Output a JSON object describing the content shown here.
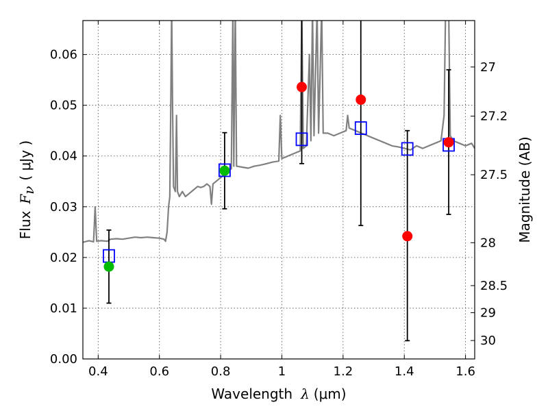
{
  "chart_data": {
    "type": "scatter",
    "xlabel_prefix": "Wavelength",
    "xlabel_symbol": "λ",
    "xlabel_unit": "(μm)",
    "ylabel_prefix": "Flux",
    "ylabel_symbol": "F",
    "ylabel_subscript": "ν",
    "ylabel_unit": "( μJy )",
    "y2label": "Magnitude (AB)",
    "xlim": [
      0.35,
      1.63
    ],
    "ylim": [
      0.0,
      0.0667
    ],
    "grid": true,
    "x_ticks": [
      0.4,
      0.6,
      0.8,
      1.0,
      1.2,
      1.4,
      1.6
    ],
    "x_tick_labels": [
      "0.4",
      "0.6",
      "0.8",
      "1",
      "1.2",
      "1.4",
      "1.6"
    ],
    "y_ticks": [
      0.0,
      0.01,
      0.02,
      0.03,
      0.04,
      0.05,
      0.06
    ],
    "y_tick_labels": [
      "0.00",
      "0.01",
      "0.02",
      "0.03",
      "0.04",
      "0.05",
      "0.06"
    ],
    "y2_ticks": [
      27,
      27.2,
      27.5,
      28,
      28.5,
      29,
      30
    ],
    "y2_tick_labels": [
      "27",
      "27.2",
      "27.5",
      "28",
      "28.5",
      "29",
      "30"
    ],
    "colors": {
      "spectrum": "#808080",
      "model_marker": "#0000ff",
      "green_points": "#00bb00",
      "red_points": "#ff0000",
      "errorbars": "#000000"
    },
    "series": [
      {
        "marker": "open-square",
        "color": "#0000ff",
        "points": [
          {
            "x": 0.435,
            "y": 0.0203
          },
          {
            "x": 0.813,
            "y": 0.0372
          },
          {
            "x": 1.065,
            "y": 0.0433
          },
          {
            "x": 1.258,
            "y": 0.0455
          },
          {
            "x": 1.41,
            "y": 0.0414
          },
          {
            "x": 1.545,
            "y": 0.0422
          }
        ]
      },
      {
        "marker": "filled-circle",
        "color": "#00bb00",
        "points": [
          {
            "x": 0.435,
            "y": 0.0182,
            "yerr_low": 0.011,
            "yerr_high": 0.0254
          },
          {
            "x": 0.813,
            "y": 0.0371,
            "yerr_low": 0.0296,
            "yerr_high": 0.0446
          }
        ]
      },
      {
        "marker": "filled-circle",
        "color": "#ff0000",
        "points": [
          {
            "x": 1.065,
            "y": 0.0536,
            "yerr_low": 0.0385,
            "yerr_high": 0.069
          },
          {
            "x": 1.258,
            "y": 0.0511,
            "yerr_low": 0.0263,
            "yerr_high": 0.069
          },
          {
            "x": 1.41,
            "y": 0.0242,
            "yerr_low": 0.0036,
            "yerr_high": 0.045
          },
          {
            "x": 1.545,
            "y": 0.0427,
            "yerr_low": 0.0285,
            "yerr_high": 0.057
          }
        ]
      }
    ],
    "spectrum": [
      [
        0.35,
        0.023
      ],
      [
        0.37,
        0.0233
      ],
      [
        0.385,
        0.0231
      ],
      [
        0.39,
        0.03
      ],
      [
        0.395,
        0.0232
      ],
      [
        0.41,
        0.0233
      ],
      [
        0.43,
        0.0232
      ],
      [
        0.44,
        0.0236
      ],
      [
        0.46,
        0.0237
      ],
      [
        0.48,
        0.0236
      ],
      [
        0.5,
        0.0238
      ],
      [
        0.52,
        0.024
      ],
      [
        0.54,
        0.0239
      ],
      [
        0.56,
        0.024
      ],
      [
        0.58,
        0.0239
      ],
      [
        0.6,
        0.0238
      ],
      [
        0.615,
        0.0236
      ],
      [
        0.62,
        0.0232
      ],
      [
        0.625,
        0.025
      ],
      [
        0.63,
        0.03
      ],
      [
        0.634,
        0.032
      ],
      [
        0.637,
        0.05
      ],
      [
        0.64,
        0.069
      ],
      [
        0.643,
        0.05
      ],
      [
        0.646,
        0.034
      ],
      [
        0.652,
        0.033
      ],
      [
        0.656,
        0.048
      ],
      [
        0.659,
        0.033
      ],
      [
        0.665,
        0.032
      ],
      [
        0.675,
        0.033
      ],
      [
        0.685,
        0.032
      ],
      [
        0.695,
        0.0325
      ],
      [
        0.705,
        0.033
      ],
      [
        0.715,
        0.0335
      ],
      [
        0.725,
        0.034
      ],
      [
        0.735,
        0.0338
      ],
      [
        0.745,
        0.034
      ],
      [
        0.755,
        0.0345
      ],
      [
        0.765,
        0.034
      ],
      [
        0.77,
        0.0305
      ],
      [
        0.775,
        0.0345
      ],
      [
        0.785,
        0.035
      ],
      [
        0.795,
        0.0355
      ],
      [
        0.805,
        0.036
      ],
      [
        0.815,
        0.0365
      ],
      [
        0.825,
        0.037
      ],
      [
        0.835,
        0.0375
      ],
      [
        0.84,
        0.069
      ],
      [
        0.843,
        0.038
      ],
      [
        0.848,
        0.069
      ],
      [
        0.852,
        0.038
      ],
      [
        0.87,
        0.0378
      ],
      [
        0.89,
        0.0376
      ],
      [
        0.91,
        0.038
      ],
      [
        0.93,
        0.0382
      ],
      [
        0.95,
        0.0385
      ],
      [
        0.97,
        0.0388
      ],
      [
        0.99,
        0.039
      ],
      [
        0.995,
        0.048
      ],
      [
        1.0,
        0.0395
      ],
      [
        1.02,
        0.04
      ],
      [
        1.04,
        0.0405
      ],
      [
        1.06,
        0.041
      ],
      [
        1.065,
        0.069
      ],
      [
        1.07,
        0.0415
      ],
      [
        1.08,
        0.042
      ],
      [
        1.09,
        0.06
      ],
      [
        1.095,
        0.043
      ],
      [
        1.1,
        0.069
      ],
      [
        1.105,
        0.044
      ],
      [
        1.115,
        0.069
      ],
      [
        1.12,
        0.0445
      ],
      [
        1.13,
        0.069
      ],
      [
        1.135,
        0.0445
      ],
      [
        1.15,
        0.0445
      ],
      [
        1.17,
        0.044
      ],
      [
        1.19,
        0.0445
      ],
      [
        1.21,
        0.045
      ],
      [
        1.215,
        0.048
      ],
      [
        1.22,
        0.0455
      ],
      [
        1.24,
        0.045
      ],
      [
        1.26,
        0.0445
      ],
      [
        1.28,
        0.044
      ],
      [
        1.3,
        0.0435
      ],
      [
        1.32,
        0.043
      ],
      [
        1.34,
        0.0425
      ],
      [
        1.36,
        0.042
      ],
      [
        1.38,
        0.0418
      ],
      [
        1.4,
        0.0415
      ],
      [
        1.42,
        0.0412
      ],
      [
        1.44,
        0.042
      ],
      [
        1.46,
        0.0415
      ],
      [
        1.48,
        0.042
      ],
      [
        1.5,
        0.0425
      ],
      [
        1.52,
        0.043
      ],
      [
        1.53,
        0.048
      ],
      [
        1.535,
        0.069
      ],
      [
        1.54,
        0.069
      ],
      [
        1.545,
        0.069
      ],
      [
        1.55,
        0.044
      ],
      [
        1.56,
        0.043
      ],
      [
        1.58,
        0.0425
      ],
      [
        1.6,
        0.042
      ],
      [
        1.62,
        0.0425
      ],
      [
        1.63,
        0.0415
      ]
    ]
  }
}
